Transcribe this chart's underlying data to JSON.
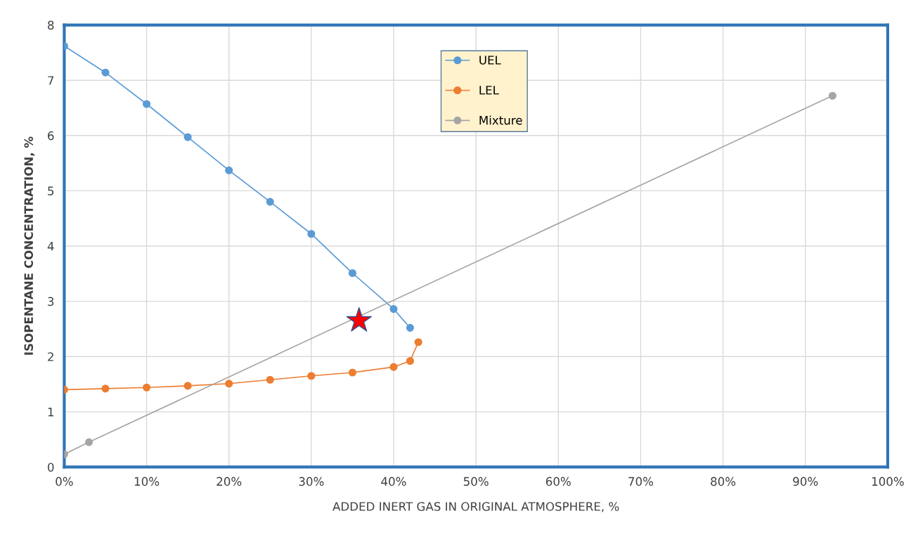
{
  "chart_data": {
    "type": "line",
    "xlabel": "ADDED INERT GAS IN ORIGINAL ATMOSPHERE, %",
    "ylabel": "ISOPENTANE CONCENTRATION, %",
    "series": [
      {
        "name": "UEL",
        "color": "#5b9bd5",
        "x": [
          0,
          5,
          10,
          15,
          20,
          25,
          30,
          35,
          40,
          42
        ],
        "values": [
          7.62,
          7.14,
          6.57,
          5.97,
          5.37,
          4.8,
          4.22,
          3.51,
          2.86,
          2.52
        ]
      },
      {
        "name": "LEL",
        "color": "#ed7d31",
        "x": [
          0,
          5,
          10,
          15,
          20,
          25,
          30,
          35,
          40,
          42,
          43
        ],
        "values": [
          1.4,
          1.42,
          1.44,
          1.47,
          1.51,
          1.58,
          1.65,
          1.71,
          1.81,
          1.92,
          2.26
        ]
      },
      {
        "name": "Mixture",
        "color": "#a5a5a5",
        "x": [
          0,
          3,
          93.3
        ],
        "values": [
          0.23,
          0.45,
          6.72
        ]
      },
      {
        "type": "scatter",
        "color": "#ff0000",
        "marker": "star",
        "x": [
          35.8
        ],
        "values": [
          2.65
        ]
      }
    ],
    "xlim": [
      0,
      100
    ],
    "xticks": [
      {
        "value": 0,
        "label": "0%"
      },
      {
        "value": 10,
        "label": "10%"
      },
      {
        "value": 20,
        "label": "20%"
      },
      {
        "value": 30,
        "label": "30%"
      },
      {
        "value": 40,
        "label": "40%"
      },
      {
        "value": 50,
        "label": "50%"
      },
      {
        "value": 60,
        "label": "60%"
      },
      {
        "value": 70,
        "label": "70%"
      },
      {
        "value": 80,
        "label": "80%"
      },
      {
        "value": 90,
        "label": "90%"
      },
      {
        "value": 100,
        "label": "100%"
      }
    ],
    "ylim": [
      0,
      8
    ],
    "yticks": [
      0,
      1,
      2,
      3,
      4,
      5,
      6,
      7,
      8
    ],
    "grid": true,
    "legend": "top",
    "marker": "circle",
    "line_style": "solid"
  }
}
